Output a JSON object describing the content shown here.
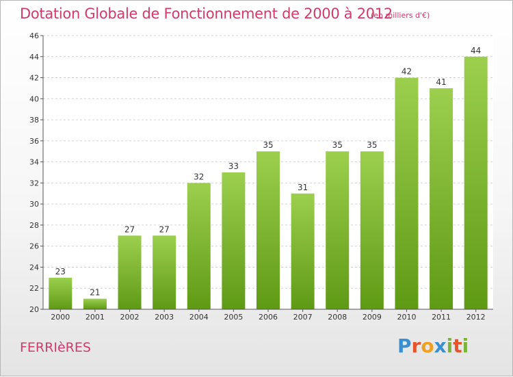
{
  "header": {
    "title": "Dotation Globale de Fonctionnement de 2000 à 2012",
    "subtitle": "(en milliers d'€)"
  },
  "footer": {
    "commune": "FERRIèRES",
    "logo_text": "Proxiti",
    "logo_letters": [
      {
        "ch": "P",
        "color": "#3a8fd0"
      },
      {
        "ch": "r",
        "color": "#e8542a"
      },
      {
        "ch": "o",
        "color": "#f0a020"
      },
      {
        "ch": "x",
        "color": "#3a8fd0"
      },
      {
        "ch": "i",
        "color": "#7ab43a"
      },
      {
        "ch": "t",
        "color": "#e8542a"
      },
      {
        "ch": "i",
        "color": "#7ab43a"
      }
    ]
  },
  "colors": {
    "bar_top": "#9ccf4e",
    "bar_bottom": "#5f9a15",
    "grid": "#d2d2d2",
    "axis": "#555555",
    "accent": "#d13a6a"
  },
  "chart_data": {
    "type": "bar",
    "title": "Dotation Globale de Fonctionnement de 2000 à 2012",
    "subtitle": "(en milliers d'€)",
    "categories": [
      "2000",
      "2001",
      "2002",
      "2003",
      "2004",
      "2005",
      "2006",
      "2007",
      "2008",
      "2009",
      "2010",
      "2011",
      "2012"
    ],
    "values": [
      23,
      21,
      27,
      27,
      32,
      33,
      35,
      31,
      35,
      35,
      42,
      41,
      44
    ],
    "ylim": [
      20,
      46
    ],
    "yticks": [
      20,
      22,
      24,
      26,
      28,
      30,
      32,
      34,
      36,
      38,
      40,
      42,
      44,
      46
    ],
    "grid": true,
    "data_labels": true
  }
}
